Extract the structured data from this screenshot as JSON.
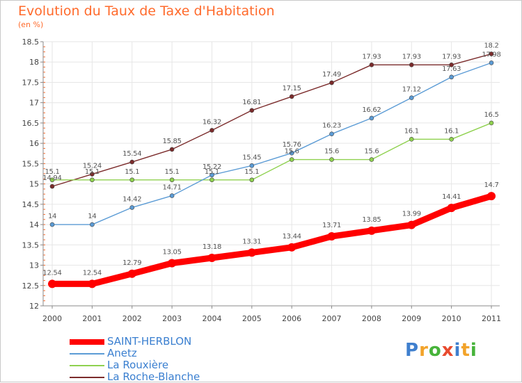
{
  "header": {
    "title": "Evolution du Taux de Taxe d'Habitation",
    "subtitle": "(en %)"
  },
  "logo": {
    "text": "Proxiti",
    "letters": [
      "P",
      "r",
      "o",
      "x",
      "i",
      "t",
      "i"
    ],
    "colors": [
      "#3f7fce",
      "#f2a32a",
      "#47b33a",
      "#e84a2e",
      "#3f7fce",
      "#f2a32a",
      "#47b33a"
    ]
  },
  "chart_data": {
    "type": "line",
    "title": "Evolution du Taux de Taxe d'Habitation",
    "subtitle": "(en %)",
    "xlabel": "",
    "ylabel": "",
    "x": [
      "2000",
      "2001",
      "2002",
      "2003",
      "2004",
      "2005",
      "2006",
      "2007",
      "2008",
      "2009",
      "2010",
      "2011"
    ],
    "ylim": [
      12,
      18.5
    ],
    "yticks": [
      "12",
      "12.5",
      "13",
      "13.5",
      "14",
      "14.5",
      "15",
      "15.5",
      "16",
      "16.5",
      "17",
      "17.5",
      "18",
      "18.5"
    ],
    "grid": true,
    "legend_position": "bottom-left",
    "series": [
      {
        "name": "SAINT-HERBLON",
        "color": "#ff0000",
        "values": [
          12.54,
          12.54,
          12.79,
          13.05,
          13.18,
          13.31,
          13.44,
          13.71,
          13.85,
          13.99,
          14.41,
          14.7
        ],
        "labels": [
          "12.54",
          "12.54",
          "12.79",
          "13.05",
          "13.18",
          "13.31",
          "13.44",
          "13.71",
          "13.85",
          "13.99",
          "14.41",
          "14.7"
        ]
      },
      {
        "name": "Anetz",
        "color": "#5b9bd5",
        "values": [
          14,
          14,
          14.42,
          14.71,
          15.22,
          15.45,
          15.76,
          16.23,
          16.62,
          17.12,
          17.63,
          17.98
        ],
        "labels": [
          "14",
          "14",
          "14.42",
          "14.71",
          "15.22",
          "15.45",
          "15.76",
          "16.23",
          "16.62",
          "17.12",
          "17.63",
          "17.98"
        ]
      },
      {
        "name": "La Rouxière",
        "color": "#8fd14f",
        "values": [
          15.1,
          15.1,
          15.1,
          15.1,
          15.1,
          15.1,
          15.6,
          15.6,
          15.6,
          16.1,
          16.1,
          16.5
        ],
        "labels": [
          "15.1",
          "15.1",
          "15.1",
          "15.1",
          "15.1",
          "15.1",
          "15.6",
          "15.6",
          "15.6",
          "16.1",
          "16.1",
          "16.5"
        ]
      },
      {
        "name": "La Roche-Blanche",
        "color": "#7b2b2b",
        "values": [
          14.94,
          15.24,
          15.54,
          15.85,
          16.32,
          16.81,
          17.15,
          17.49,
          17.93,
          17.93,
          17.93,
          18.2
        ],
        "labels": [
          "14.94",
          "15.24",
          "15.54",
          "15.85",
          "16.32",
          "16.81",
          "17.15",
          "17.49",
          "17.93",
          "17.93",
          "17.93",
          "18.2"
        ]
      }
    ]
  }
}
